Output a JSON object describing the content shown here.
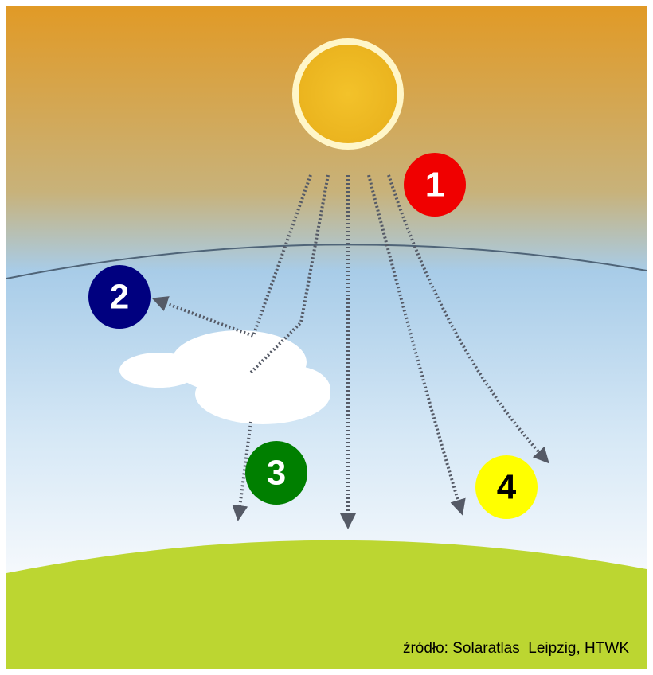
{
  "badges": [
    {
      "label": "1"
    },
    {
      "label": "2"
    },
    {
      "label": "3"
    },
    {
      "label": "4"
    }
  ],
  "source": "źródło: Solaratlas  Leipzig, HTWK"
}
